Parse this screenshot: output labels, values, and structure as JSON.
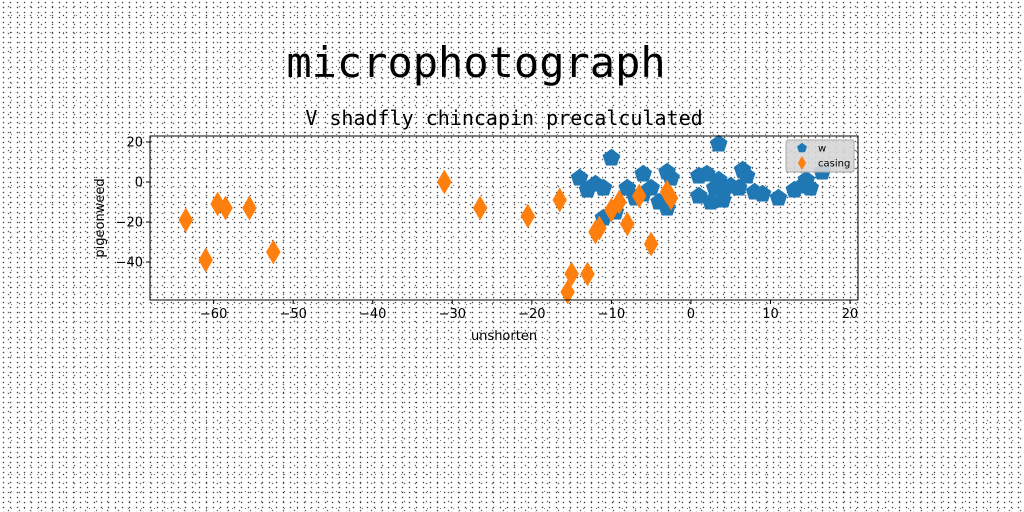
{
  "figure": {
    "suptitle": "microphotograph"
  },
  "chart_data": {
    "type": "scatter",
    "title": "V shadfly chincapin precalculated",
    "xlabel": "unshorten",
    "ylabel": "pigeonweed",
    "xlim": [
      -68,
      21
    ],
    "ylim": [
      -59,
      23
    ],
    "xticks": [
      -60,
      -50,
      -40,
      -30,
      -20,
      -10,
      0,
      10,
      20
    ],
    "yticks": [
      -40,
      -20,
      0,
      20
    ],
    "grid": false,
    "legend_position": "top-right",
    "series": [
      {
        "name": "w",
        "marker": "pentagon",
        "color": "#1f77b4",
        "points": [
          [
            3.5,
            19
          ],
          [
            -10,
            12
          ],
          [
            -6,
            4
          ],
          [
            -3,
            5
          ],
          [
            -2.5,
            2
          ],
          [
            -14,
            2
          ],
          [
            -12,
            -1
          ],
          [
            -11,
            -3
          ],
          [
            -13,
            -4
          ],
          [
            -8,
            -3
          ],
          [
            -7,
            -8
          ],
          [
            -6,
            -6
          ],
          [
            -5,
            -3
          ],
          [
            -4,
            -10
          ],
          [
            -3,
            -13
          ],
          [
            -11,
            -18
          ],
          [
            -9.5,
            -15
          ],
          [
            1,
            3
          ],
          [
            2,
            4
          ],
          [
            3,
            -3
          ],
          [
            3.5,
            1
          ],
          [
            4,
            -6
          ],
          [
            5,
            -2
          ],
          [
            4,
            -9
          ],
          [
            2.5,
            -10
          ],
          [
            1,
            -7
          ],
          [
            6,
            -3
          ],
          [
            6.5,
            6
          ],
          [
            7,
            3
          ],
          [
            8,
            -5
          ],
          [
            9,
            -6
          ],
          [
            11,
            -8
          ],
          [
            13,
            -4
          ],
          [
            14,
            -2
          ],
          [
            14.5,
            1
          ],
          [
            15,
            -3
          ],
          [
            16.5,
            5
          ]
        ]
      },
      {
        "name": "casing",
        "marker": "thin_diamond",
        "color": "#ff7f0e",
        "points": [
          [
            -63.5,
            -19
          ],
          [
            -61,
            -39
          ],
          [
            -59.5,
            -11
          ],
          [
            -58.5,
            -13
          ],
          [
            -55.5,
            -13
          ],
          [
            -52.5,
            -35
          ],
          [
            -31,
            0
          ],
          [
            -26.5,
            -13
          ],
          [
            -20.5,
            -17
          ],
          [
            -16.5,
            -9
          ],
          [
            -15.5,
            -55
          ],
          [
            -15,
            -46
          ],
          [
            -13,
            -46
          ],
          [
            -12,
            -25
          ],
          [
            -11.5,
            -23
          ],
          [
            -10,
            -14
          ],
          [
            -9,
            -10
          ],
          [
            -8,
            -21
          ],
          [
            -6.5,
            -7
          ],
          [
            -5,
            -31
          ],
          [
            -3,
            -5
          ],
          [
            -2.5,
            -8
          ]
        ]
      }
    ]
  }
}
